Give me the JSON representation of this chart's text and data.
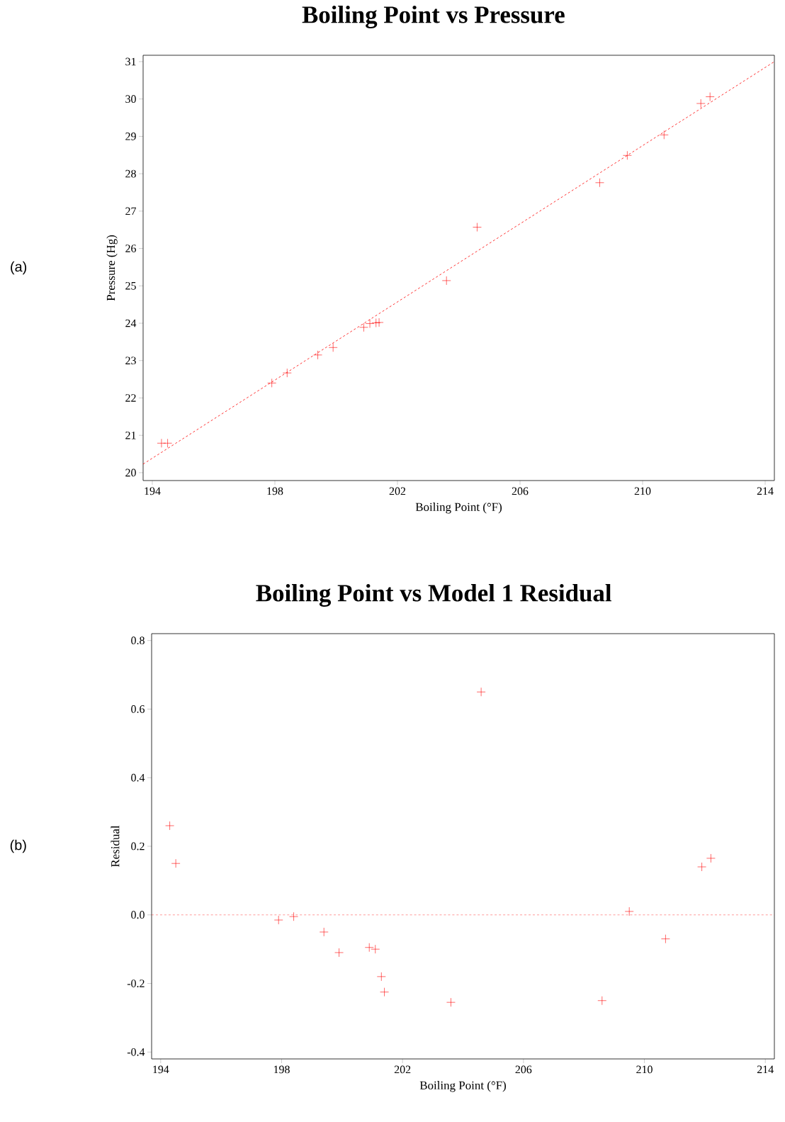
{
  "chart_data": [
    {
      "type": "scatter",
      "title": "Boiling Point vs Pressure",
      "xlabel": "Boiling Point (°F)",
      "ylabel": "Pressure (Hg)",
      "annotations": [
        "(a)"
      ],
      "xlim": [
        193.7,
        214.3
      ],
      "ylim": [
        19.79,
        31.17
      ],
      "xticks": [
        194,
        198,
        202,
        206,
        210,
        214
      ],
      "yticks": [
        20,
        21,
        22,
        23,
        24,
        25,
        26,
        27,
        28,
        29,
        30,
        31
      ],
      "series": [
        {
          "color": "#ff0000",
          "marker": "cross",
          "x": [
            194.5,
            194.3,
            197.9,
            198.4,
            199.4,
            199.9,
            200.9,
            201.1,
            201.4,
            201.3,
            203.6,
            204.6,
            209.5,
            208.6,
            210.7,
            211.9,
            212.2
          ],
          "values": [
            20.79,
            20.79,
            22.4,
            22.67,
            23.15,
            23.35,
            23.89,
            23.99,
            24.02,
            24.01,
            25.14,
            26.57,
            28.49,
            27.76,
            29.04,
            29.88,
            30.06
          ]
        },
        {
          "type": "line",
          "color": "#ff0000",
          "marker": "none",
          "line_style": "dashed",
          "x": [
            193.7,
            214.3
          ],
          "values": [
            20.23,
            31.0
          ]
        }
      ]
    },
    {
      "type": "scatter",
      "title": "Boiling Point vs Model 1 Residual",
      "xlabel": "Boiling Point (°F)",
      "ylabel": "Residual",
      "annotations": [
        "(b)"
      ],
      "xlim": [
        193.7,
        214.3
      ],
      "ylim": [
        -0.42,
        0.82
      ],
      "xticks": [
        194,
        198,
        202,
        206,
        210,
        214
      ],
      "yticks": [
        -0.4,
        -0.2,
        {
          "value": 0,
          "label": "0.0"
        },
        0.2,
        0.4,
        0.6,
        0.8
      ],
      "ref_lines": [
        {
          "axis": "y",
          "value": 0,
          "color": "#ff0000",
          "line_style": "dashed"
        }
      ],
      "series": [
        {
          "color": "#ff0000",
          "marker": "cross",
          "x": [
            194.5,
            194.3,
            197.9,
            198.4,
            199.4,
            199.9,
            200.9,
            201.1,
            201.4,
            201.3,
            203.6,
            204.6,
            209.5,
            208.6,
            210.7,
            211.9,
            212.2
          ],
          "values": [
            0.15,
            0.26,
            -0.015,
            -0.005,
            -0.05,
            -0.11,
            -0.095,
            -0.1,
            -0.225,
            -0.18,
            -0.255,
            0.65,
            0.01,
            -0.25,
            -0.07,
            0.14,
            0.165
          ]
        }
      ]
    }
  ]
}
